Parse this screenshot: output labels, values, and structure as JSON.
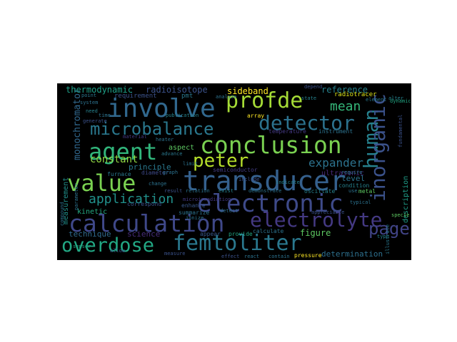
{
  "words": [
    {
      "text": "transducer",
      "color": "#35608d"
    },
    {
      "text": "electronic",
      "color": "#3e4a89"
    },
    {
      "text": "calculation",
      "color": "#3f4889"
    },
    {
      "text": "femtoliter",
      "color": "#2a788e"
    },
    {
      "text": "overdose",
      "color": "#22a884"
    },
    {
      "text": "conclusion",
      "color": "#7ad151"
    },
    {
      "text": "electrolyte",
      "color": "#443983"
    },
    {
      "text": "involve",
      "color": "#31688e"
    },
    {
      "text": "agent",
      "color": "#31b57b"
    },
    {
      "text": "value",
      "color": "#7ad151"
    },
    {
      "text": "microbalance",
      "color": "#2a788e"
    },
    {
      "text": "detector",
      "color": "#2c728e"
    },
    {
      "text": "profde",
      "color": "#a5db36"
    },
    {
      "text": "peter",
      "color": "#b5de2b"
    },
    {
      "text": "human",
      "color": "#26818e"
    },
    {
      "text": "inorganic",
      "color": "#3b528b"
    },
    {
      "text": "page",
      "color": "#414487"
    },
    {
      "text": "application",
      "color": "#21918c"
    },
    {
      "text": "expander",
      "color": "#2c728e"
    },
    {
      "text": "mean",
      "color": "#35b779"
    },
    {
      "text": "constant",
      "color": "#90d743"
    },
    {
      "text": "monochromator",
      "color": "#31688e"
    },
    {
      "text": "thermodynamic",
      "color": "#1fa088"
    },
    {
      "text": "radioisotope",
      "color": "#3b528b"
    },
    {
      "text": "sideband",
      "color": "#fde725"
    },
    {
      "text": "reference",
      "color": "#26828e"
    },
    {
      "text": "radiotracer",
      "color": "#dce319"
    },
    {
      "text": "determination",
      "color": "#2d708e"
    },
    {
      "text": "technique",
      "color": "#306a8e"
    },
    {
      "text": "science",
      "color": "#472d7b"
    },
    {
      "text": "figure",
      "color": "#5ec962"
    },
    {
      "text": "principle",
      "color": "#2a788e"
    },
    {
      "text": "ultrasonic",
      "color": "#482979"
    },
    {
      "text": "level",
      "color": "#2c728e"
    },
    {
      "text": "description",
      "color": "#1f9e89"
    },
    {
      "text": "measurement",
      "color": "#21918c"
    },
    {
      "text": "kinetic",
      "color": "#25ab82"
    },
    {
      "text": "aspect",
      "color": "#5ec962"
    },
    {
      "text": "requirement",
      "color": "#3b528b"
    },
    {
      "text": "pmt",
      "color": "#2a788e"
    },
    {
      "text": "temperature",
      "color": "#443983"
    },
    {
      "text": "instrument",
      "color": "#2c728e"
    },
    {
      "text": "furnace",
      "color": "#2a788e"
    },
    {
      "text": "diameter",
      "color": "#3e4989"
    },
    {
      "text": "semiconductor",
      "color": "#433e85"
    },
    {
      "text": "oscillate",
      "color": "#26818e"
    },
    {
      "text": "metal",
      "color": "#5ec962"
    },
    {
      "text": "correspond",
      "color": "#3b528b"
    },
    {
      "text": "enhance",
      "color": "#39568c"
    },
    {
      "text": "summarize",
      "color": "#2c728e"
    },
    {
      "text": "condition",
      "color": "#26828e"
    },
    {
      "text": "calculate",
      "color": "#2c728e"
    },
    {
      "text": "provide",
      "color": "#22a884"
    },
    {
      "text": "appear",
      "color": "#38598c"
    },
    {
      "text": "contain",
      "color": "#2c728e"
    },
    {
      "text": "pressure",
      "color": "#fde725"
    },
    {
      "text": "react",
      "color": "#2c728e"
    },
    {
      "text": "effect",
      "color": "#3b528b"
    },
    {
      "text": "illustrate",
      "color": "#2a788e"
    },
    {
      "text": "fundamental",
      "color": "#3b528b"
    },
    {
      "text": "compound",
      "color": "#2c728e"
    },
    {
      "text": "parameter",
      "color": "#2c728e"
    },
    {
      "text": "point",
      "color": "#2a788e"
    },
    {
      "text": "alter",
      "color": "#26828e"
    },
    {
      "text": "dynamic",
      "color": "#22a884"
    },
    {
      "text": "depend",
      "color": "#3b528b"
    },
    {
      "text": "array",
      "color": "#fde725"
    },
    {
      "text": "analyze",
      "color": "#2c728e"
    },
    {
      "text": "heater",
      "color": "#2c728e"
    },
    {
      "text": "material",
      "color": "#443983"
    },
    {
      "text": "advance",
      "color": "#2a788e"
    },
    {
      "text": "include",
      "color": "#3b528b"
    },
    {
      "text": "indicate",
      "color": "#26828e"
    },
    {
      "text": "require",
      "color": "#2c728e"
    },
    {
      "text": "demonstrate",
      "color": "#2c728e"
    },
    {
      "text": "exist",
      "color": "#26828e"
    },
    {
      "text": "detect",
      "color": "#2c728e"
    },
    {
      "text": "result",
      "color": "#3b528b"
    },
    {
      "text": "relation",
      "color": "#2c728e"
    },
    {
      "text": "publication",
      "color": "#26828e"
    },
    {
      "text": "graph",
      "color": "#2c728e"
    },
    {
      "text": "specie",
      "color": "#5ec962"
    },
    {
      "text": "allow",
      "color": "#3b528b"
    },
    {
      "text": "limit",
      "color": "#2c728e"
    },
    {
      "text": "element",
      "color": "#2a788e"
    },
    {
      "text": "state",
      "color": "#26828e"
    },
    {
      "text": "ionize",
      "color": "#2c728e"
    },
    {
      "text": "generate",
      "color": "#3b528b"
    },
    {
      "text": "system",
      "color": "#2c728e"
    },
    {
      "text": "microirradiation",
      "color": "#443983"
    },
    {
      "text": "use",
      "color": "#2c728e"
    },
    {
      "text": "need",
      "color": "#26828e"
    },
    {
      "text": "appreciable",
      "color": "#3b528b"
    },
    {
      "text": "typical",
      "color": "#2c728e"
    },
    {
      "text": "sensor",
      "color": "#22a884"
    },
    {
      "text": "type",
      "color": "#26828e"
    },
    {
      "text": "change",
      "color": "#2c728e"
    },
    {
      "text": "measure",
      "color": "#3b528b"
    },
    {
      "text": "time",
      "color": "#2c728e"
    }
  ]
}
